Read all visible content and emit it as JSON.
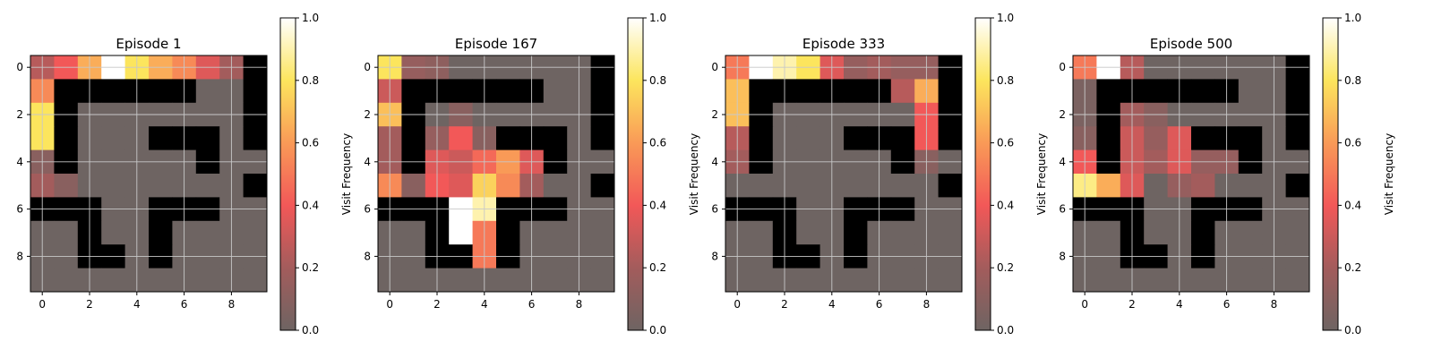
{
  "chart_data": [
    {
      "type": "heatmap",
      "title": "Episode 1",
      "xticks": [
        "0",
        "2",
        "4",
        "6",
        "8"
      ],
      "yticks": [
        "0",
        "2",
        "4",
        "6",
        "8"
      ],
      "colorbar_label": "Visit Frequency",
      "colorbar_ticks": [
        "0.0",
        "0.2",
        "0.4",
        "0.6",
        "0.8",
        "1.0"
      ],
      "vmin": 0,
      "vmax": 1,
      "grid": true,
      "values": [
        [
          0.25,
          0.4,
          0.65,
          1.0,
          0.8,
          0.65,
          0.55,
          0.35,
          0.2,
          -1
        ],
        [
          0.55,
          -1,
          -1,
          -1,
          -1,
          -1,
          -1,
          0,
          0,
          -1
        ],
        [
          0.8,
          -1,
          0,
          0,
          0,
          0,
          0,
          0,
          0,
          -1
        ],
        [
          0.8,
          -1,
          0,
          0,
          0,
          -1,
          -1,
          -1,
          0,
          -1
        ],
        [
          0.1,
          -1,
          0,
          0,
          0,
          0,
          0,
          -1,
          0,
          0
        ],
        [
          0.2,
          0.1,
          0,
          0,
          0,
          0,
          0,
          0,
          0,
          -1
        ],
        [
          -1,
          -1,
          -1,
          0,
          0,
          -1,
          -1,
          -1,
          0,
          0
        ],
        [
          0,
          0,
          -1,
          0,
          0,
          -1,
          0,
          0,
          0,
          0
        ],
        [
          0,
          0,
          -1,
          -1,
          0,
          -1,
          0,
          0,
          0,
          0
        ],
        [
          0,
          0,
          0,
          0,
          0,
          0,
          0,
          0,
          0,
          0
        ]
      ]
    },
    {
      "type": "heatmap",
      "title": "Episode 167",
      "xticks": [
        "0",
        "2",
        "4",
        "6",
        "8"
      ],
      "yticks": [
        "0",
        "2",
        "4",
        "6",
        "8"
      ],
      "colorbar_label": "Visit Frequency",
      "colorbar_ticks": [
        "0.0",
        "0.2",
        "0.4",
        "0.6",
        "0.8",
        "1.0"
      ],
      "vmin": 0,
      "vmax": 1,
      "grid": true,
      "values": [
        [
          0.8,
          0.15,
          0.12,
          0,
          0,
          0,
          0,
          0,
          0,
          -1
        ],
        [
          0.3,
          -1,
          -1,
          -1,
          -1,
          -1,
          -1,
          0,
          0,
          -1
        ],
        [
          0.7,
          -1,
          0,
          0.1,
          0,
          0,
          0,
          0,
          0,
          -1
        ],
        [
          0.2,
          -1,
          0.15,
          0.4,
          0.1,
          -1,
          -1,
          -1,
          0,
          -1
        ],
        [
          0.2,
          -1,
          0.35,
          0.3,
          0.45,
          0.6,
          0.35,
          -1,
          0,
          0
        ],
        [
          0.55,
          0.1,
          0.4,
          0.35,
          0.75,
          0.55,
          0.2,
          0,
          0,
          -1
        ],
        [
          -1,
          -1,
          -1,
          1.0,
          0.9,
          -1,
          -1,
          -1,
          0,
          0
        ],
        [
          0,
          0,
          -1,
          1.0,
          0.5,
          -1,
          0,
          0,
          0,
          0
        ],
        [
          0,
          0,
          -1,
          -1,
          0.5,
          -1,
          0,
          0,
          0,
          0
        ],
        [
          0,
          0,
          0,
          0,
          0,
          0,
          0,
          0,
          0,
          0
        ]
      ]
    },
    {
      "type": "heatmap",
      "title": "Episode 333",
      "xticks": [
        "0",
        "2",
        "4",
        "6",
        "8"
      ],
      "yticks": [
        "0",
        "2",
        "4",
        "6",
        "8"
      ],
      "colorbar_label": "Visit Frequency",
      "colorbar_ticks": [
        "0.0",
        "0.2",
        "0.4",
        "0.6",
        "0.8",
        "1.0"
      ],
      "vmin": 0,
      "vmax": 1,
      "grid": true,
      "values": [
        [
          0.5,
          1.0,
          0.9,
          0.8,
          0.35,
          0.15,
          0.2,
          0.15,
          0.15,
          -1
        ],
        [
          0.7,
          -1,
          -1,
          -1,
          -1,
          -1,
          -1,
          0.25,
          0.65,
          -1
        ],
        [
          0.7,
          -1,
          0,
          0,
          0,
          0,
          0,
          0,
          0.4,
          -1
        ],
        [
          0.25,
          -1,
          0,
          0,
          0,
          -1,
          -1,
          -1,
          0.4,
          -1
        ],
        [
          0.2,
          -1,
          0,
          0,
          0,
          0,
          0,
          -1,
          0.1,
          0
        ],
        [
          0,
          0,
          0,
          0,
          0,
          0,
          0,
          0,
          0,
          -1
        ],
        [
          -1,
          -1,
          -1,
          0,
          0,
          -1,
          -1,
          -1,
          0,
          0
        ],
        [
          0,
          0,
          -1,
          0,
          0,
          -1,
          0,
          0,
          0,
          0
        ],
        [
          0,
          0,
          -1,
          -1,
          0,
          -1,
          0,
          0,
          0,
          0
        ],
        [
          0,
          0,
          0,
          0,
          0,
          0,
          0,
          0,
          0,
          0
        ]
      ]
    },
    {
      "type": "heatmap",
      "title": "Episode 500",
      "xticks": [
        "0",
        "2",
        "4",
        "6",
        "8"
      ],
      "yticks": [
        "0",
        "2",
        "4",
        "6",
        "8"
      ],
      "colorbar_label": "Visit Frequency",
      "colorbar_ticks": [
        "0.0",
        "0.2",
        "0.4",
        "0.6",
        "0.8",
        "1.0"
      ],
      "vmin": 0,
      "vmax": 1,
      "grid": true,
      "values": [
        [
          0.5,
          1.0,
          0.25,
          0,
          0,
          0,
          0,
          0,
          0,
          -1
        ],
        [
          0.05,
          -1,
          -1,
          -1,
          -1,
          -1,
          -1,
          0,
          0,
          -1
        ],
        [
          0.05,
          -1,
          0.2,
          0.1,
          0,
          0,
          0,
          0,
          0,
          -1
        ],
        [
          0.1,
          -1,
          0.3,
          0.15,
          0.35,
          -1,
          -1,
          -1,
          0,
          -1
        ],
        [
          0.4,
          -1,
          0.3,
          0.2,
          0.35,
          0.15,
          0.15,
          -1,
          0,
          0
        ],
        [
          0.85,
          0.65,
          0.35,
          0,
          0.15,
          0.2,
          0,
          0,
          0,
          -1
        ],
        [
          -1,
          -1,
          -1,
          0,
          0,
          -1,
          -1,
          -1,
          0,
          0
        ],
        [
          0,
          0,
          -1,
          0,
          0,
          -1,
          0,
          0,
          0,
          0
        ],
        [
          0,
          0,
          -1,
          -1,
          0,
          -1,
          0,
          0,
          0,
          0
        ],
        [
          0,
          0,
          0,
          0,
          0,
          0,
          0,
          0,
          0,
          0
        ]
      ]
    }
  ]
}
